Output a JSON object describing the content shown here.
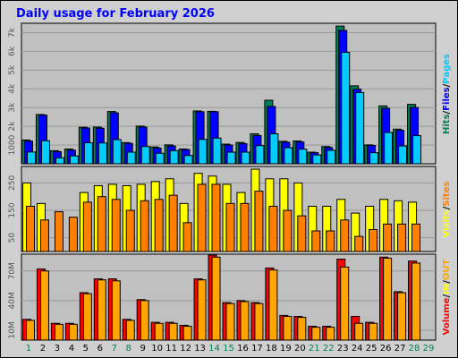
{
  "chart_data": {
    "type": "bar",
    "title": "Daily usage for February 2026",
    "categories": [
      "1",
      "2",
      "3",
      "4",
      "5",
      "6",
      "7",
      "8",
      "9",
      "10",
      "11",
      "12",
      "13",
      "14",
      "15",
      "16",
      "17",
      "18",
      "19",
      "20",
      "21",
      "22",
      "23",
      "24",
      "25",
      "26",
      "27",
      "28",
      "29"
    ],
    "weekend_days": [
      "1",
      "7",
      "8",
      "14",
      "15",
      "21",
      "22",
      "28",
      "29"
    ],
    "colors": {
      "title": "#0000ff",
      "hits": "#00805a",
      "files": "#0000ff",
      "pages": "#00ccff",
      "visits": "#ffff00",
      "sites": "#ff8000",
      "volume": "#ff0000",
      "in_out": "#ffa500",
      "weekday_label": "#000000",
      "weekend_label": "#00805a",
      "panel_bg": "#c0c0c0",
      "frame_bg": "#d0d0d0"
    },
    "panels": [
      {
        "id": "hits",
        "y_ticks": [
          "1000",
          "2k",
          "3k",
          "4k",
          "5k",
          "6k",
          "7k"
        ],
        "ylim": [
          0,
          7500
        ],
        "legend": [
          {
            "text": "Hits",
            "color": "#00805a"
          },
          {
            "text": "/",
            "color": "#000000"
          },
          {
            "text": "Files",
            "color": "#0000ff"
          },
          {
            "text": "/",
            "color": "#000000"
          },
          {
            "text": "Pages",
            "color": "#00ccff"
          }
        ],
        "series": [
          {
            "name": "Hits",
            "color": "#00805a",
            "values": [
              1270,
              2630,
              700,
              790,
              1950,
              1960,
              2790,
              1130,
              2010,
              900,
              1010,
              790,
              2820,
              2800,
              1050,
              1140,
              1600,
              3390,
              1200,
              1220,
              620,
              920,
              7350,
              4160,
              1010,
              3090,
              1850,
              3170,
              0
            ]
          },
          {
            "name": "Files",
            "color": "#0000ff",
            "values": [
              1210,
              2600,
              650,
              730,
              1910,
              1900,
              2720,
              1090,
              1960,
              840,
              950,
              760,
              2780,
              2780,
              1000,
              1080,
              1510,
              3060,
              1150,
              1160,
              590,
              870,
              7120,
              3980,
              980,
              2960,
              1790,
              3010,
              0
            ]
          },
          {
            "name": "Pages",
            "color": "#00ccff",
            "values": [
              630,
              1230,
              320,
              420,
              1120,
              1110,
              1290,
              620,
              920,
              560,
              700,
              440,
              1300,
              1370,
              620,
              620,
              970,
              1600,
              860,
              780,
              470,
              720,
              5950,
              3800,
              590,
              1670,
              950,
              1500,
              0
            ]
          }
        ]
      },
      {
        "id": "visits",
        "y_ticks": [
          "50",
          "150",
          "250"
        ],
        "ylim": [
          0,
          310
        ],
        "legend": [
          {
            "text": "Visits",
            "color": "#ffff00"
          },
          {
            "text": "/",
            "color": "#000000"
          },
          {
            "text": "Sites",
            "color": "#ff8000"
          }
        ],
        "series": [
          {
            "name": "Visits",
            "color": "#ffff00",
            "values": [
              250,
              175,
              0,
              0,
              215,
              240,
              245,
              240,
              245,
              255,
              265,
              175,
              285,
              275,
              245,
              215,
              300,
              265,
              265,
              250,
              165,
              165,
              190,
              140,
              165,
              190,
              185,
              180,
              0
            ]
          },
          {
            "name": "Sites",
            "color": "#ff8000",
            "values": [
              165,
              115,
              145,
              125,
              180,
              200,
              190,
              150,
              185,
              190,
              205,
              105,
              245,
              245,
              175,
              175,
              220,
              165,
              150,
              130,
              75,
              75,
              115,
              55,
              80,
              100,
              100,
              100,
              0
            ]
          }
        ]
      },
      {
        "id": "volume",
        "y_ticks": [
          "10M",
          "40M",
          "70M"
        ],
        "ylim": [
          0,
          87
        ],
        "legend": [
          {
            "text": "Volume",
            "color": "#ff0000"
          },
          {
            "text": "/",
            "color": "#000000"
          },
          {
            "text": "IN",
            "color": "#ffff00"
          },
          {
            "text": "/",
            "color": "#000000"
          },
          {
            "text": "OUT",
            "color": "#ffa500"
          }
        ],
        "series": [
          {
            "name": "Volume",
            "color": "#ff0000",
            "values": [
              21,
              72,
              17,
              17,
              48,
              62,
              62,
              21,
              41,
              18,
              18,
              15,
              62,
              86,
              38,
              40,
              38,
              73,
              25,
              24,
              14,
              14,
              82,
              24,
              18,
              84,
              49,
              80,
              0
            ]
          },
          {
            "name": "OUT",
            "color": "#ffa500",
            "values": [
              20,
              70,
              16,
              16,
              47,
              61,
              60,
              20,
              40,
              17,
              17,
              14,
              61,
              84,
              37,
              39,
              37,
              71,
              24,
              23,
              13,
              13,
              74,
              17,
              17,
              83,
              48,
              78,
              0
            ]
          }
        ]
      }
    ]
  }
}
